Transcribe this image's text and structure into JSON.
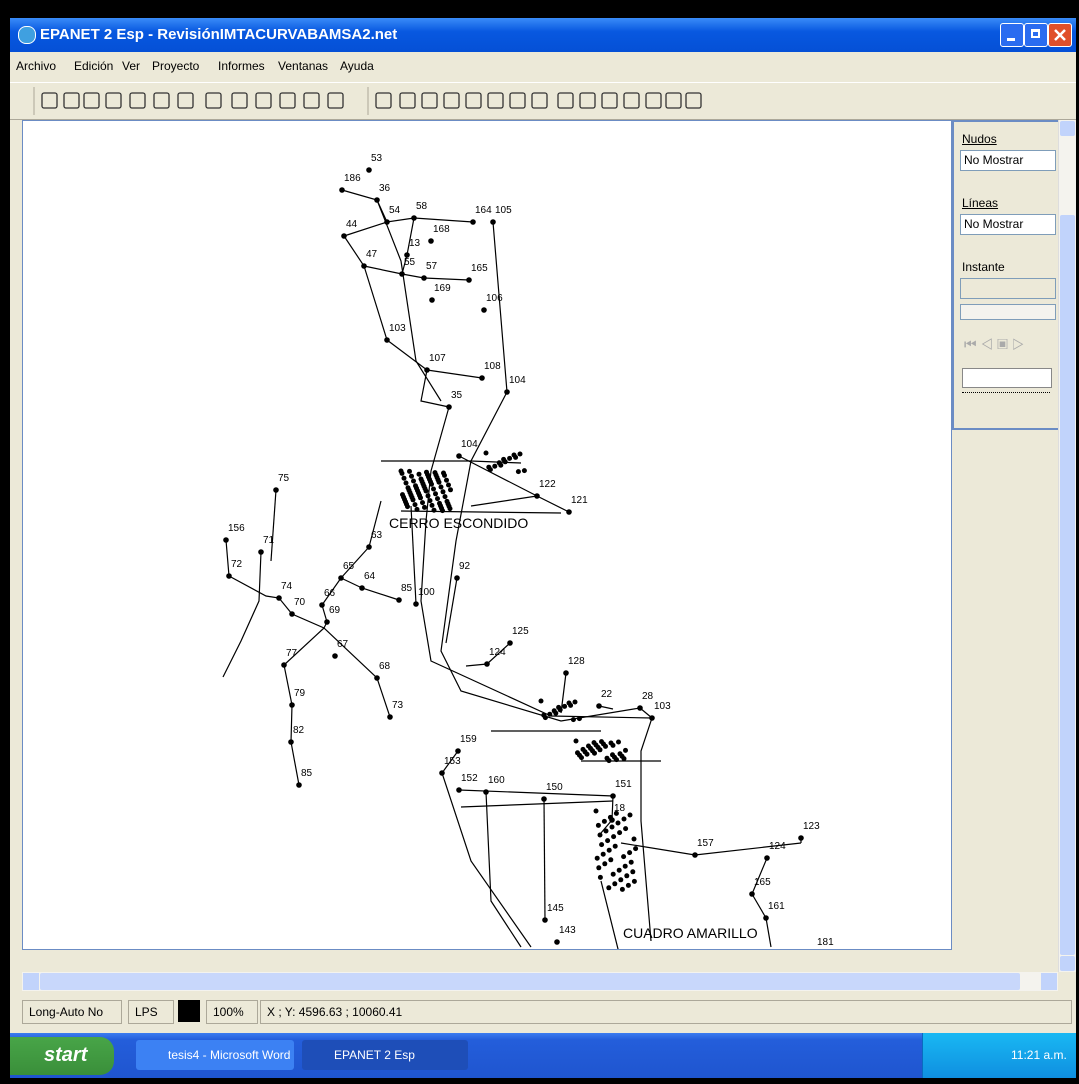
{
  "window": {
    "title": "EPANET 2 Esp - RevisiónIMTACURVABAMSA2.net"
  },
  "menu": [
    "Archivo",
    "Edición",
    "Ver",
    "Proyecto",
    "Informes",
    "Ventanas",
    "Ayuda"
  ],
  "panel": {
    "nodes_label": "Nudos",
    "nodes_value": "No Mostrar",
    "links_label": "Líneas",
    "links_value": "No Mostrar",
    "time_label": "Instante"
  },
  "map": {
    "nodes": [
      "53",
      "186",
      "36",
      "54",
      "44",
      "58",
      "168",
      "164",
      "105",
      "13",
      "47",
      "55",
      "57",
      "165",
      "169",
      "106",
      "103",
      "107",
      "108",
      "104",
      "35",
      "104",
      "75",
      "156",
      "71",
      "72",
      "74",
      "70",
      "66",
      "69",
      "67",
      "65",
      "64",
      "63",
      "85",
      "100",
      "92",
      "122",
      "121",
      "125",
      "124",
      "128",
      "22",
      "28",
      "103",
      "77",
      "79",
      "82",
      "85",
      "73",
      "68",
      "159",
      "153",
      "152",
      "160",
      "150",
      "151",
      "18",
      "157",
      "123",
      "124",
      "165",
      "161",
      "145",
      "143",
      "181"
    ],
    "areas": [
      "CERRO ESCONDIDO",
      "CUADRO AMARILLO"
    ]
  },
  "status": [
    "Long-Auto No",
    "LPS",
    "100%",
    "X ; Y: 4596.63 ; 10060.41"
  ],
  "taskbar": {
    "start": "start",
    "tasks": [
      "tesis4 - Microsoft Word",
      "EPANET 2 Esp"
    ],
    "clock": "11:21 a.m."
  }
}
